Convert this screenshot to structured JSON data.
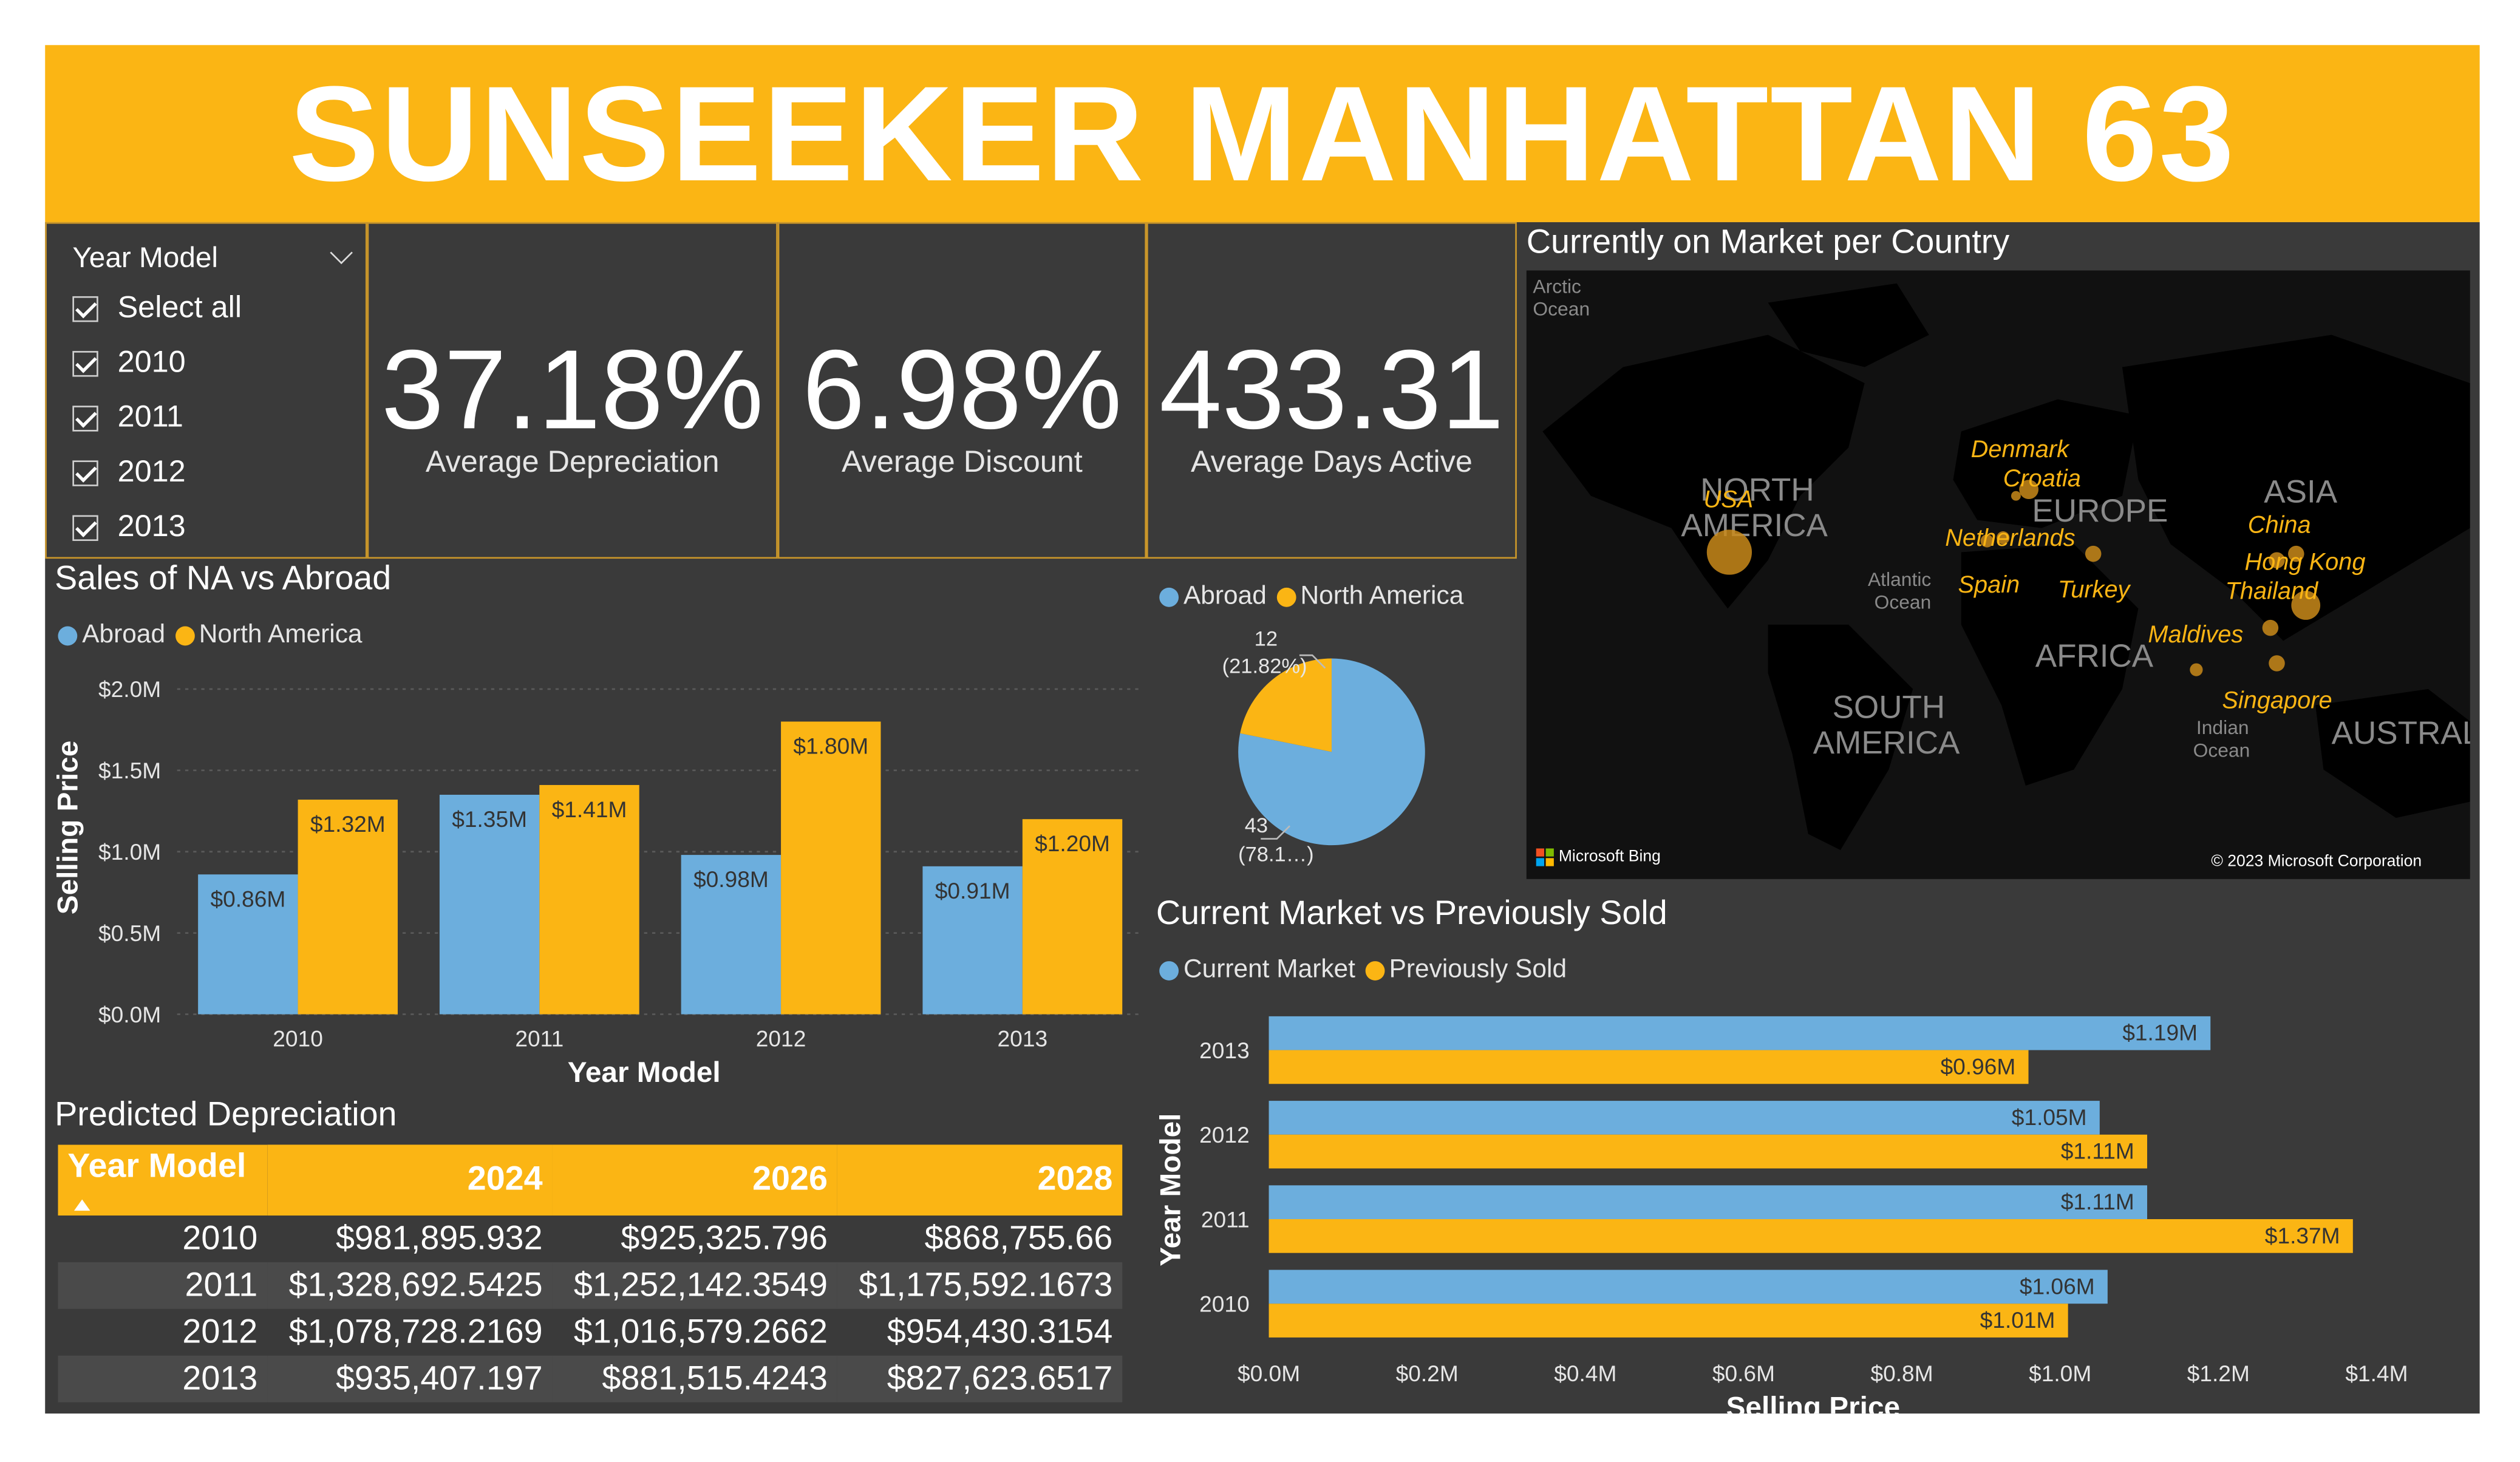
{
  "title": "SUNSEEKER MANHATTAN 63",
  "colors": {
    "gold": "#fbb514",
    "blue": "#6caedd",
    "dark": "#3a3a3a",
    "map_bg": "#111111"
  },
  "slicer": {
    "title": "Year Model",
    "icon": "chevron-down-icon",
    "items": [
      {
        "label": "Select all",
        "checked": true
      },
      {
        "label": "2010",
        "checked": true
      },
      {
        "label": "2011",
        "checked": true
      },
      {
        "label": "2012",
        "checked": true
      },
      {
        "label": "2013",
        "checked": true
      }
    ]
  },
  "kpis": [
    {
      "value": "37.18%",
      "label": "Average Depreciation"
    },
    {
      "value": "6.98%",
      "label": "Average Discount"
    },
    {
      "value": "433.31",
      "label": "Average Days Active"
    }
  ],
  "map": {
    "title": "Currently on Market per Country",
    "attribution_left": "Microsoft Bing",
    "attribution_right": "© 2023 Microsoft Corporation",
    "regions": [
      "Arctic",
      "Ocean",
      "NORTH",
      "AMERICA",
      "EUROPE",
      "ASIA",
      "AFRICA",
      "SOUTH",
      "AMERICA",
      "Atlantic",
      "Ocean",
      "Indian",
      "Ocean",
      "AUSTRAL"
    ],
    "countries": [
      "USA",
      "Denmark",
      "Croatia",
      "Netherlands",
      "Spain",
      "Turkey",
      "China",
      "Hong Kong",
      "Thailand",
      "Maldives",
      "Singapore"
    ]
  },
  "chart_data": [
    {
      "type": "bar",
      "title": "Sales of NA vs Abroad",
      "categories": [
        "2010",
        "2011",
        "2012",
        "2013"
      ],
      "series": [
        {
          "name": "Abroad",
          "values": [
            0.86,
            1.35,
            0.98,
            0.91
          ],
          "labels": [
            "$0.86M",
            "$1.35M",
            "$0.98M",
            "$0.91M"
          ]
        },
        {
          "name": "North America",
          "values": [
            1.32,
            1.41,
            1.8,
            1.2
          ],
          "labels": [
            "$1.32M",
            "$1.41M",
            "$1.80M",
            "$1.20M"
          ]
        }
      ],
      "xlabel": "Year Model",
      "ylabel": "Selling Price",
      "ylim": [
        0,
        2.0
      ],
      "yticks": [
        "$0.0M",
        "$0.5M",
        "$1.0M",
        "$1.5M",
        "$2.0M"
      ],
      "grid": true,
      "legend": "top-left"
    },
    {
      "type": "pie",
      "categories": [
        "Abroad",
        "North America"
      ],
      "values": [
        43,
        12
      ],
      "labels": [
        "43\n(78.1…)",
        "12\n(21.82%)"
      ],
      "legend": "top"
    },
    {
      "type": "bar",
      "orientation": "horizontal",
      "title": "Current Market vs Previously Sold",
      "categories": [
        "2013",
        "2012",
        "2011",
        "2010"
      ],
      "series": [
        {
          "name": "Current Market",
          "values": [
            1.19,
            1.05,
            1.11,
            1.06
          ],
          "labels": [
            "$1.19M",
            "$1.05M",
            "$1.11M",
            "$1.06M"
          ]
        },
        {
          "name": "Previously Sold",
          "values": [
            0.96,
            1.11,
            1.37,
            1.01
          ],
          "labels": [
            "$0.96M",
            "$1.11M",
            "$1.37M",
            "$1.01M"
          ]
        }
      ],
      "xlabel": "Selling Price",
      "ylabel": "Year Model",
      "xlim": [
        0,
        1.4
      ],
      "xticks": [
        "$0.0M",
        "$0.2M",
        "$0.4M",
        "$0.6M",
        "$0.8M",
        "$1.0M",
        "$1.2M",
        "$1.4M"
      ],
      "legend": "top-left"
    }
  ],
  "table": {
    "title": "Predicted Depreciation",
    "headers": [
      "Year Model",
      "2024",
      "2026",
      "2028"
    ],
    "rows": [
      [
        "2010",
        "$981,895.932",
        "$925,325.796",
        "$868,755.66"
      ],
      [
        "2011",
        "$1,328,692.5425",
        "$1,252,142.3549",
        "$1,175,592.1673"
      ],
      [
        "2012",
        "$1,078,728.2169",
        "$1,016,579.2662",
        "$954,430.3154"
      ],
      [
        "2013",
        "$935,407.197",
        "$881,515.4243",
        "$827,623.6517"
      ]
    ]
  }
}
